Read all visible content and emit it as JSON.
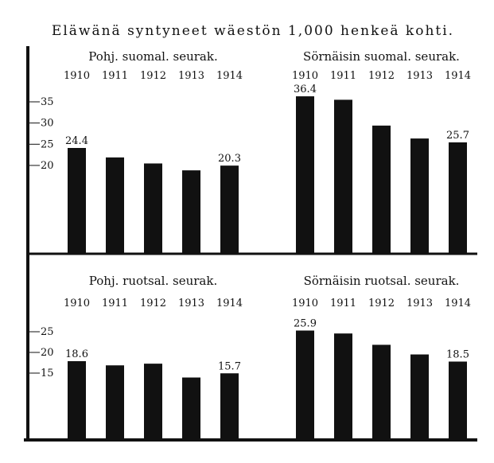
{
  "chart_data": {
    "type": "bar",
    "title": "Eläwänä syntyneet wäestön 1,000 henkeä kohti.",
    "categories": [
      "1910",
      "1911",
      "1912",
      "1913",
      "1914"
    ],
    "bar_color": "#111111",
    "panels": [
      {
        "title": "Pohj. suomal. seurak.",
        "yticks": [
          35,
          30,
          25,
          20
        ],
        "values": [
          24.4,
          22.2,
          20.8,
          19.2,
          20.3
        ],
        "labels": {
          "0": "24.4",
          "4": "20.3"
        }
      },
      {
        "title": "Sörnäisin suomal. seurak.",
        "yticks": [],
        "values": [
          36.4,
          35.6,
          29.6,
          26.6,
          25.7
        ],
        "labels": {
          "0": "36.4",
          "4": "25.7"
        }
      },
      {
        "title": "Pohj. ruotsal. seurak.",
        "yticks": [
          25,
          20,
          15
        ],
        "values": [
          18.6,
          17.6,
          18.0,
          14.7,
          15.7
        ],
        "labels": {
          "0": "18.6",
          "4": "15.7"
        }
      },
      {
        "title": "Sörnäisin ruotsal. seurak.",
        "yticks": [],
        "values": [
          25.9,
          25.2,
          22.5,
          20.2,
          18.5
        ],
        "labels": {
          "0": "25.9",
          "4": "18.5"
        }
      }
    ]
  }
}
